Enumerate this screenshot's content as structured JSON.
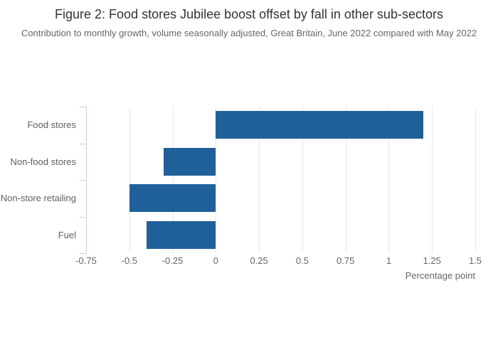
{
  "header": {
    "title": "Figure 2: Food stores Jubilee boost offset by fall in other sub-sectors",
    "subtitle": "Contribution to monthly growth, volume seasonally adjusted, Great Britain, June 2022 compared with May 2022"
  },
  "chart_data": {
    "type": "bar",
    "orientation": "horizontal",
    "title": "Figure 2: Food stores Jubilee boost offset by fall in other sub-sectors",
    "subtitle": "Contribution to monthly growth, volume seasonally adjusted, Great Britain, June 2022 compared with May 2022",
    "categories": [
      "Food stores",
      "Non-food stores",
      "Non-store retailing",
      "Fuel"
    ],
    "values": [
      1.2,
      -0.3,
      -0.5,
      -0.4
    ],
    "xlabel": "Percentage point",
    "ylabel": "",
    "xlim": [
      -0.75,
      1.5
    ],
    "xticks": [
      -0.75,
      -0.5,
      -0.25,
      0,
      0.25,
      0.5,
      0.75,
      1,
      1.25,
      1.5
    ],
    "xtick_labels": [
      "-0.75",
      "-0.5",
      "-0.25",
      "0",
      "0.25",
      "0.5",
      "0.75",
      "1",
      "1.25",
      "1.5"
    ],
    "grid": true,
    "legend": false,
    "colors": {
      "bar": "#20609a",
      "gridline": "#e6e6e6",
      "axis_line": "#c3d0e4",
      "title_text": "#333333",
      "muted_text": "#666666"
    }
  }
}
